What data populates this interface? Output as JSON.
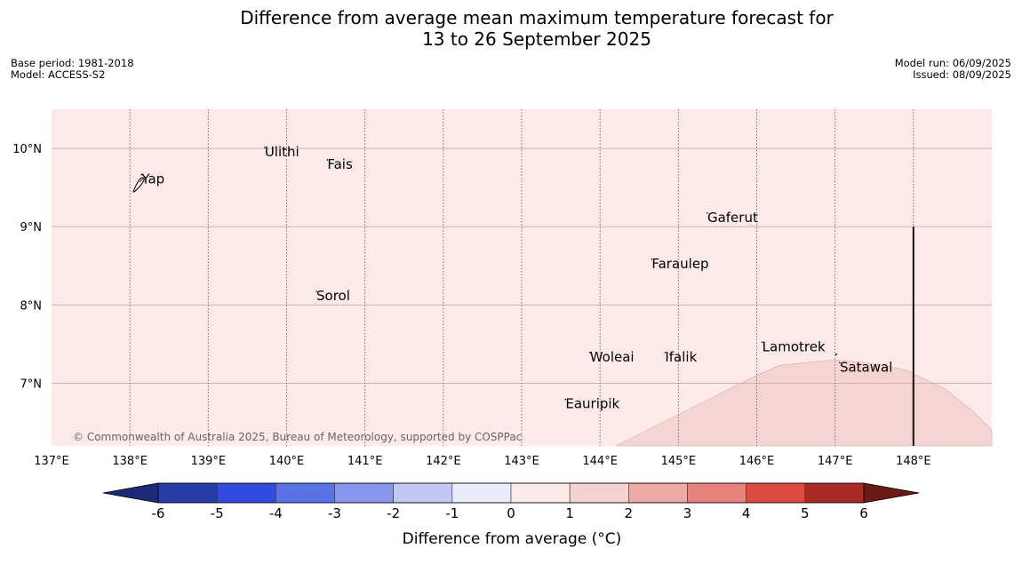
{
  "title": {
    "line1": "Difference from average mean maximum temperature forecast for",
    "line2": "13 to 26 September 2025"
  },
  "meta_left": {
    "base_period": "Base period: 1981-2018",
    "model": "Model: ACCESS-S2"
  },
  "meta_right": {
    "model_run": "Model run: 06/09/2025",
    "issued": "Issued: 08/09/2025"
  },
  "copyright": "© Commonwealth of Australia 2025, Bureau of Meteorology, supported by COSPPac",
  "map": {
    "lon_range": [
      137,
      149
    ],
    "lat_range": [
      6.2,
      10.5
    ],
    "lon_ticks": [
      137,
      138,
      139,
      140,
      141,
      142,
      143,
      144,
      145,
      146,
      147,
      148
    ],
    "lon_tick_labels": [
      "137°E",
      "138°E",
      "139°E",
      "140°E",
      "141°E",
      "142°E",
      "143°E",
      "144°E",
      "145°E",
      "146°E",
      "147°E",
      "148°E"
    ],
    "lat_ticks": [
      7,
      8,
      9,
      10
    ],
    "lat_tick_labels": [
      "7°N",
      "8°N",
      "9°N",
      "10°N"
    ],
    "background_class_color": "#fbeae9",
    "warm_region_color": "#f5d4d3",
    "warm_region_boundary": [
      [
        144.2,
        6.2
      ],
      [
        144.8,
        6.5
      ],
      [
        145.4,
        6.8
      ],
      [
        146.0,
        7.1
      ],
      [
        146.3,
        7.23
      ],
      [
        147.0,
        7.3
      ],
      [
        147.5,
        7.25
      ],
      [
        147.9,
        7.17
      ],
      [
        148.4,
        6.93
      ],
      [
        148.75,
        6.65
      ],
      [
        149.0,
        6.4
      ],
      [
        149.0,
        6.2
      ]
    ],
    "boundary_line": {
      "lon": 148.0,
      "lat_from": 6.2,
      "lat_to": 9.0
    },
    "places": [
      {
        "name": "Yap",
        "lon": 138.15,
        "lat": 9.55
      },
      {
        "name": "Ulithi",
        "lon": 139.72,
        "lat": 9.9
      },
      {
        "name": "Fais",
        "lon": 140.52,
        "lat": 9.74
      },
      {
        "name": "Gaferut",
        "lon": 145.37,
        "lat": 9.06
      },
      {
        "name": "Faraulep",
        "lon": 144.66,
        "lat": 8.47
      },
      {
        "name": "Sorol",
        "lon": 140.38,
        "lat": 8.06
      },
      {
        "name": "Lamotrek",
        "lon": 146.07,
        "lat": 7.41
      },
      {
        "name": "Woleai",
        "lon": 143.87,
        "lat": 7.28
      },
      {
        "name": "Ifalik",
        "lon": 144.83,
        "lat": 7.28
      },
      {
        "name": "Satawal",
        "lon": 147.06,
        "lat": 7.15
      },
      {
        "name": "Eauripik",
        "lon": 143.56,
        "lat": 6.68
      }
    ]
  },
  "colorbar": {
    "label": "Difference from average (°C)",
    "ticks": [
      "-6",
      "-5",
      "-4",
      "-3",
      "-2",
      "-1",
      "0",
      "1",
      "2",
      "3",
      "4",
      "5",
      "6"
    ],
    "under_color": "#1e2a78",
    "over_color": "#6b1a18",
    "colors": [
      "#283ca8",
      "#314be0",
      "#5a72e6",
      "#8896ee",
      "#c2c8f4",
      "#eaebfb",
      "#fceaea",
      "#f5d3d3",
      "#eeaaa6",
      "#e8827c",
      "#dc4a40",
      "#a82a24"
    ]
  }
}
